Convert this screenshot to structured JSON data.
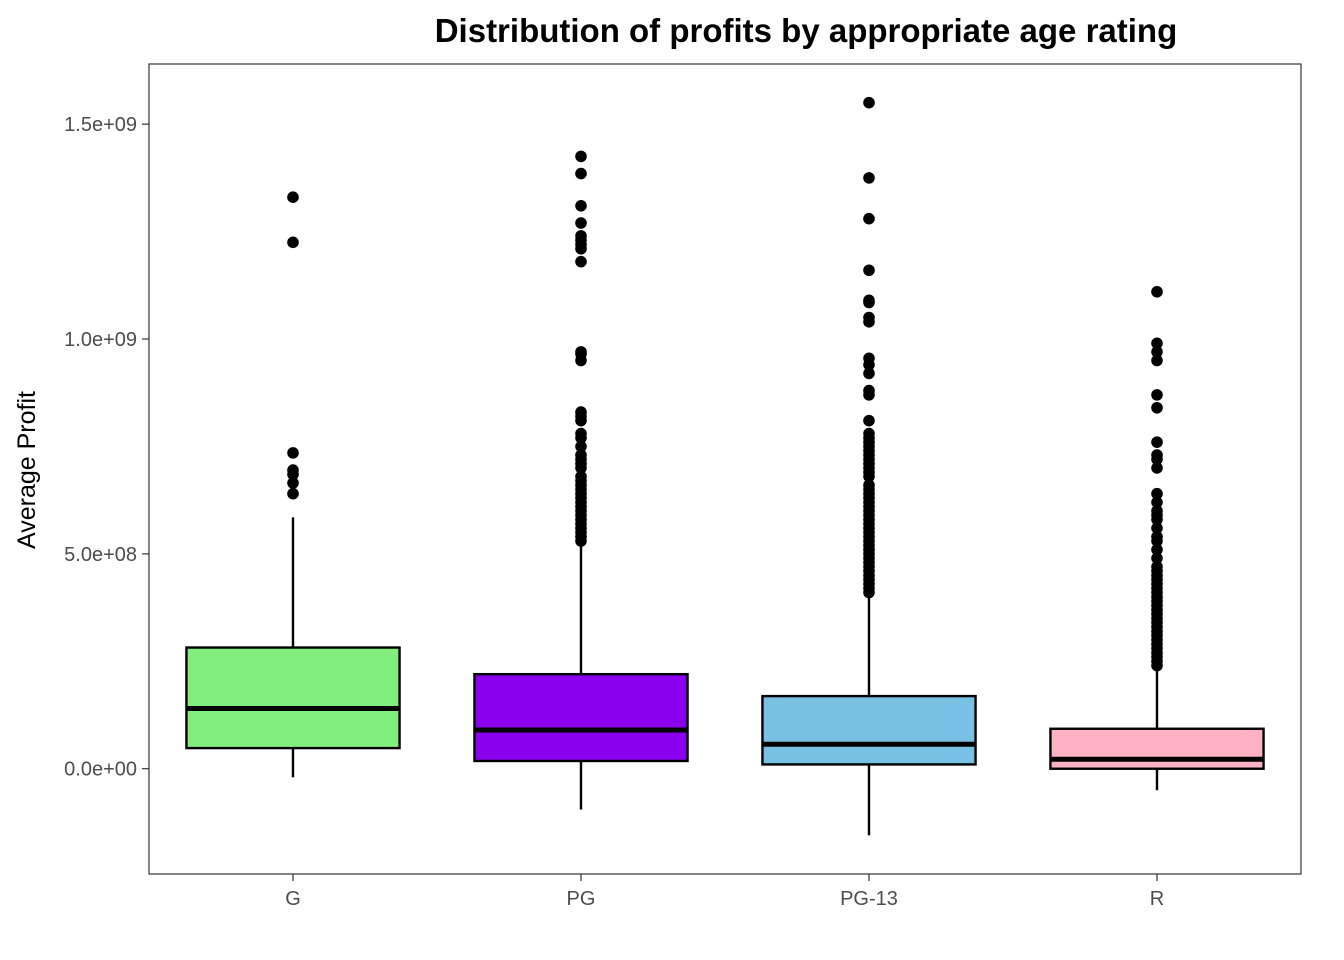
{
  "chart_data": {
    "type": "boxplot",
    "title": "Distribution of profits by appropriate age rating",
    "xlabel": "",
    "ylabel": "Average Profit",
    "ylim": [
      -245000000,
      1640000000
    ],
    "yticks": [
      0,
      500000000,
      1000000000,
      1500000000
    ],
    "ytick_labels": [
      "0.0e+00",
      "5.0e+08",
      "1.0e+09",
      "1.5e+09"
    ],
    "categories": [
      "G",
      "PG",
      "PG-13",
      "R"
    ],
    "grid": false,
    "legend": "none",
    "series": [
      {
        "category": "G",
        "color": "#82ee7e",
        "whisker_low": -20000000,
        "q1": 48000000,
        "median": 140000000,
        "q3": 282000000,
        "whisker_high": 585000000,
        "outliers": [
          1330000000,
          1225000000,
          735000000,
          695000000,
          685000000,
          665000000,
          640000000
        ]
      },
      {
        "category": "PG",
        "color": "#8a00ee",
        "whisker_low": -95000000,
        "q1": 18000000,
        "median": 90000000,
        "q3": 220000000,
        "whisker_high": 520000000,
        "outliers": [
          1425000000,
          1385000000,
          1310000000,
          1270000000,
          1240000000,
          1230000000,
          1220000000,
          1210000000,
          1180000000,
          970000000,
          965000000,
          950000000,
          830000000,
          820000000,
          810000000,
          780000000,
          770000000,
          750000000,
          730000000,
          720000000,
          710000000,
          700000000,
          680000000,
          670000000,
          660000000,
          650000000,
          640000000,
          630000000,
          620000000,
          610000000,
          600000000,
          590000000,
          580000000,
          570000000,
          560000000,
          550000000,
          540000000,
          530000000
        ]
      },
      {
        "category": "PG-13",
        "color": "#78c1e4",
        "whisker_low": -155000000,
        "q1": 10000000,
        "median": 57000000,
        "q3": 169000000,
        "whisker_high": 405000000,
        "outliers": [
          1550000000,
          1375000000,
          1280000000,
          1160000000,
          1090000000,
          1085000000,
          1050000000,
          1040000000,
          955000000,
          940000000,
          920000000,
          880000000,
          870000000,
          810000000,
          780000000,
          770000000,
          760000000,
          750000000,
          740000000,
          730000000,
          720000000,
          710000000,
          700000000,
          690000000,
          680000000,
          660000000,
          650000000,
          640000000,
          630000000,
          620000000,
          610000000,
          600000000,
          590000000,
          580000000,
          570000000,
          560000000,
          550000000,
          540000000,
          530000000,
          520000000,
          510000000,
          500000000,
          490000000,
          480000000,
          470000000,
          460000000,
          450000000,
          440000000,
          430000000,
          420000000,
          410000000
        ]
      },
      {
        "category": "R",
        "color": "#feb2c3",
        "whisker_low": -50000000,
        "q1": 0,
        "median": 22000000,
        "q3": 93000000,
        "whisker_high": 230000000,
        "outliers": [
          1110000000,
          990000000,
          970000000,
          950000000,
          870000000,
          840000000,
          760000000,
          730000000,
          720000000,
          700000000,
          640000000,
          620000000,
          600000000,
          590000000,
          580000000,
          560000000,
          540000000,
          530000000,
          510000000,
          490000000,
          470000000,
          460000000,
          450000000,
          440000000,
          430000000,
          420000000,
          410000000,
          400000000,
          390000000,
          380000000,
          370000000,
          360000000,
          350000000,
          340000000,
          330000000,
          320000000,
          310000000,
          300000000,
          290000000,
          280000000,
          270000000,
          260000000,
          250000000,
          240000000
        ]
      }
    ]
  }
}
